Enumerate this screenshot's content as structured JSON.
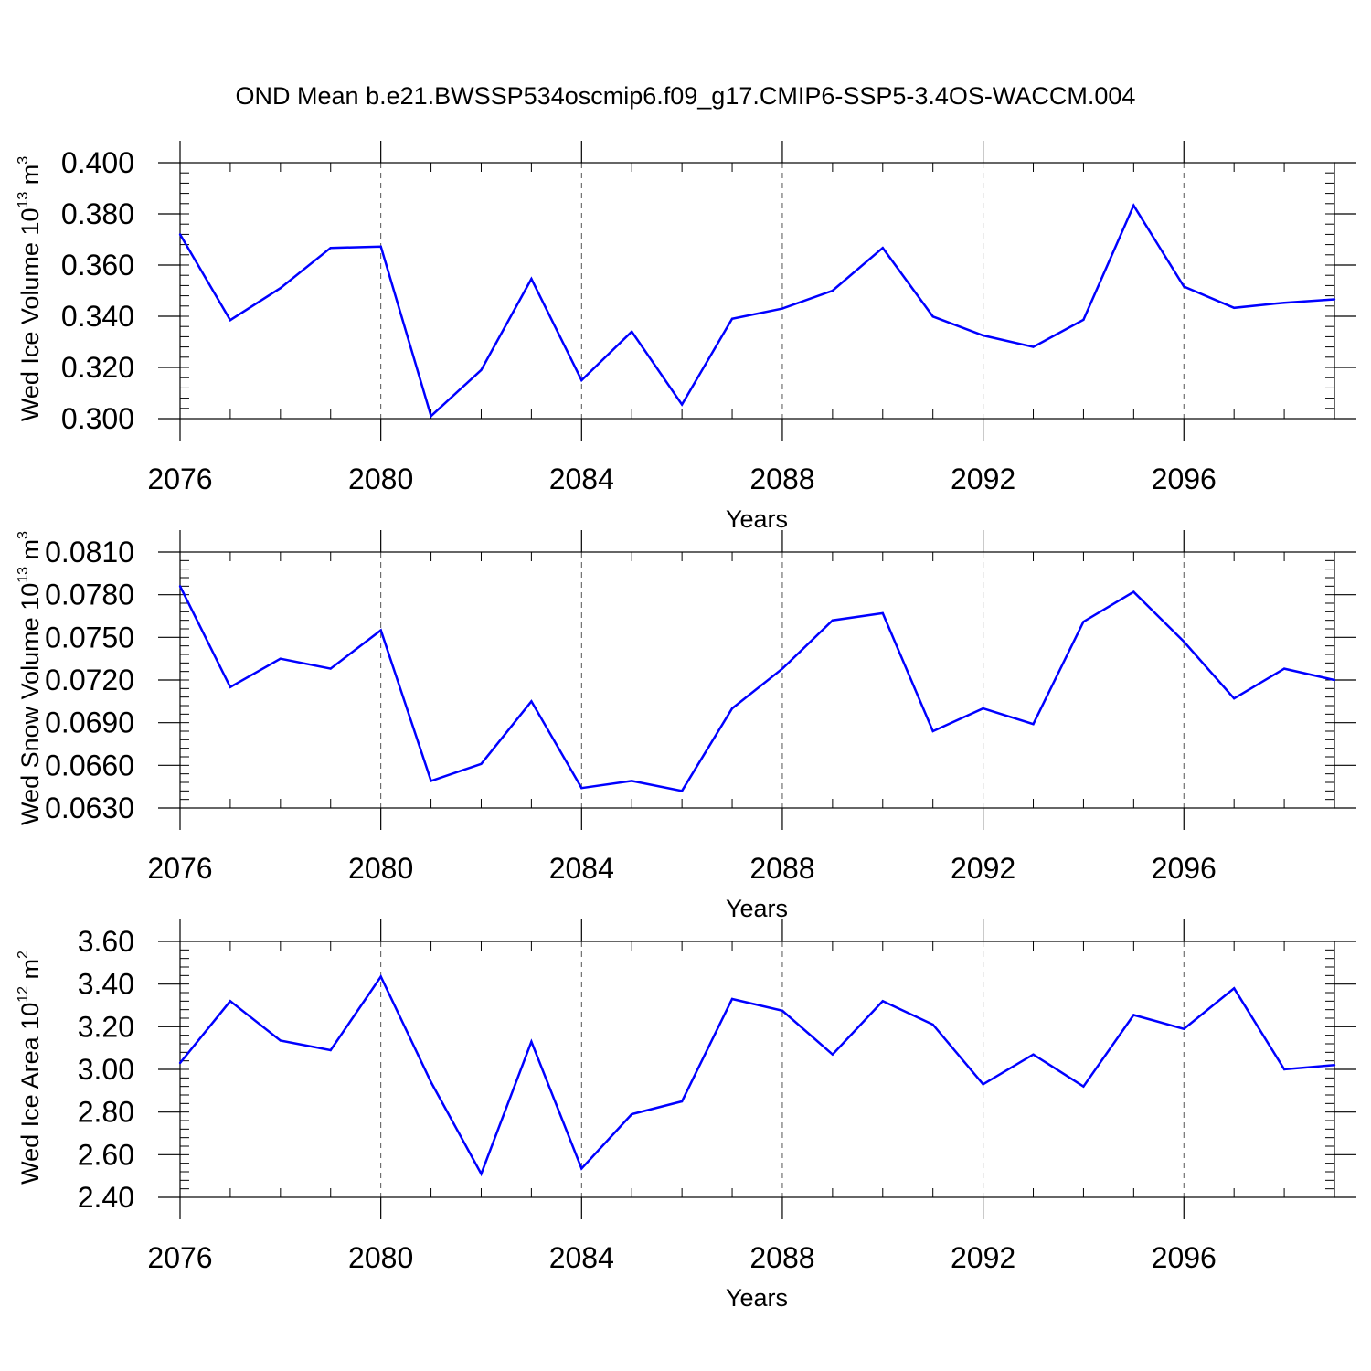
{
  "chart_data": {
    "title": "OND Mean b.e21.BWSSP534oscmip6.f09_g17.CMIP6-SSP5-3.4OS-WACCM.004",
    "panels": [
      {
        "type": "line",
        "ylabel": {
          "text": "Wed Ice Volume 10",
          "exponent": "13",
          "unit": " m",
          "unit_exponent": "3"
        },
        "xlabel": "Years",
        "xlim": [
          2076,
          2099
        ],
        "xticks": [
          "2076",
          "2080",
          "2084",
          "2088",
          "2092",
          "2096"
        ],
        "xtick_values": [
          2076,
          2080,
          2084,
          2088,
          2092,
          2096
        ],
        "ylim": [
          0.3,
          0.4
        ],
        "yticks": [
          "0.300",
          "0.320",
          "0.340",
          "0.360",
          "0.380",
          "0.400"
        ],
        "ytick_values": [
          0.3,
          0.32,
          0.34,
          0.36,
          0.38,
          0.4
        ],
        "yminor_step": 0.004,
        "line_color": "#0000ff",
        "x": [
          2076,
          2077,
          2078,
          2079,
          2080,
          2081,
          2082,
          2083,
          2084,
          2085,
          2086,
          2087,
          2088,
          2089,
          2090,
          2091,
          2092,
          2093,
          2094,
          2095,
          2096,
          2097,
          2098,
          2099
        ],
        "values": [
          0.372,
          0.3385,
          0.351,
          0.3667,
          0.3672,
          0.301,
          0.319,
          0.3546,
          0.315,
          0.334,
          0.3055,
          0.339,
          0.343,
          0.35,
          0.3667,
          0.3399,
          0.3325,
          0.328,
          0.3386,
          0.3833,
          0.3516,
          0.3433,
          0.3453,
          0.3466
        ]
      },
      {
        "type": "line",
        "ylabel": {
          "text": "Wed Snow Volume 10",
          "exponent": "13",
          "unit": " m",
          "unit_exponent": "3"
        },
        "xlabel": "Years",
        "xlim": [
          2076,
          2099
        ],
        "xticks": [
          "2076",
          "2080",
          "2084",
          "2088",
          "2092",
          "2096"
        ],
        "xtick_values": [
          2076,
          2080,
          2084,
          2088,
          2092,
          2096
        ],
        "ylim": [
          0.063,
          0.081
        ],
        "yticks": [
          "0.0630",
          "0.0660",
          "0.0690",
          "0.0720",
          "0.0750",
          "0.0780",
          "0.0810"
        ],
        "ytick_values": [
          0.063,
          0.066,
          0.069,
          0.072,
          0.075,
          0.078,
          0.081
        ],
        "yminor_step": 0.0006,
        "line_color": "#0000ff",
        "x": [
          2076,
          2077,
          2078,
          2079,
          2080,
          2081,
          2082,
          2083,
          2084,
          2085,
          2086,
          2087,
          2088,
          2089,
          2090,
          2091,
          2092,
          2093,
          2094,
          2095,
          2096,
          2097,
          2098,
          2099
        ],
        "values": [
          0.0786,
          0.0715,
          0.0735,
          0.0728,
          0.0755,
          0.0649,
          0.0661,
          0.0705,
          0.0644,
          0.0649,
          0.0642,
          0.07,
          0.0728,
          0.0762,
          0.0767,
          0.0684,
          0.07,
          0.0689,
          0.0761,
          0.0782,
          0.0747,
          0.0707,
          0.0728,
          0.072
        ]
      },
      {
        "type": "line",
        "ylabel": {
          "text": "Wed Ice Area 10",
          "exponent": "12",
          "unit": " m",
          "unit_exponent": "2"
        },
        "xlabel": "Years",
        "xlim": [
          2076,
          2099
        ],
        "xticks": [
          "2076",
          "2080",
          "2084",
          "2088",
          "2092",
          "2096"
        ],
        "xtick_values": [
          2076,
          2080,
          2084,
          2088,
          2092,
          2096
        ],
        "ylim": [
          2.4,
          3.6
        ],
        "yticks": [
          "2.40",
          "2.60",
          "2.80",
          "3.00",
          "3.20",
          "3.40",
          "3.60"
        ],
        "ytick_values": [
          2.4,
          2.6,
          2.8,
          3.0,
          3.2,
          3.4,
          3.6
        ],
        "yminor_step": 0.04,
        "line_color": "#0000ff",
        "x": [
          2076,
          2077,
          2078,
          2079,
          2080,
          2081,
          2082,
          2083,
          2084,
          2085,
          2086,
          2087,
          2088,
          2089,
          2090,
          2091,
          2092,
          2093,
          2094,
          2095,
          2096,
          2097,
          2098,
          2099
        ],
        "values": [
          3.03,
          3.32,
          3.135,
          3.09,
          3.435,
          2.94,
          2.51,
          3.13,
          2.535,
          2.79,
          2.85,
          3.33,
          3.275,
          3.07,
          3.32,
          3.21,
          2.93,
          3.07,
          2.92,
          3.255,
          3.19,
          3.38,
          3.0,
          3.02
        ]
      }
    ]
  }
}
